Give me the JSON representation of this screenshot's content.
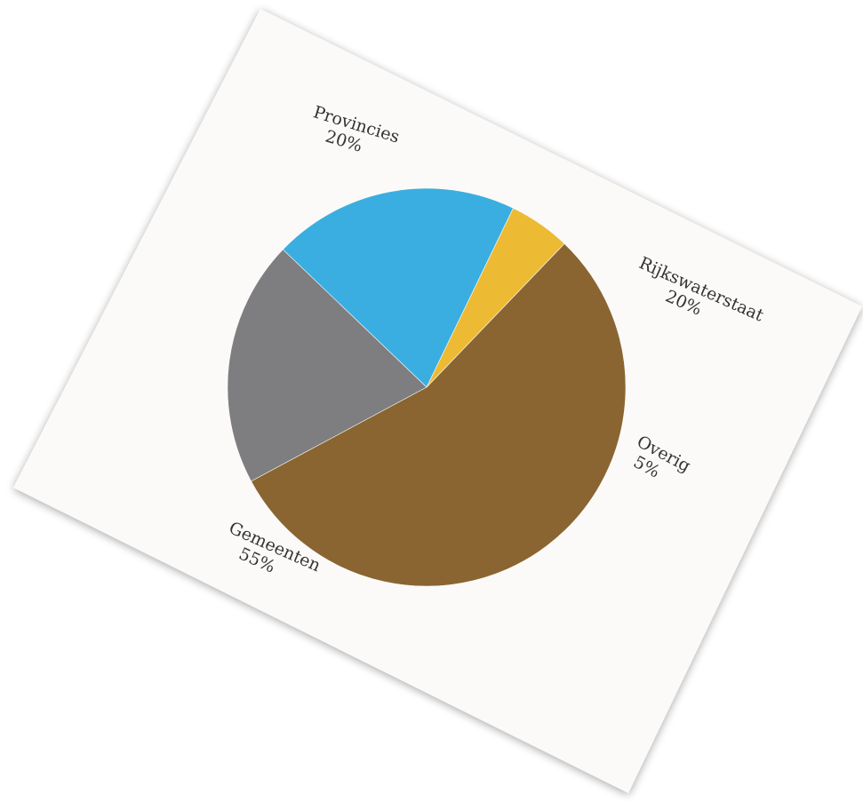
{
  "chart_data": {
    "type": "pie",
    "start_angle_deg": 64.2,
    "direction": "counterclockwise",
    "slices": [
      {
        "name": "Rijkswaterstaat",
        "value": 20,
        "label": "20%",
        "color": "#3AAEE0"
      },
      {
        "name": "Provincies",
        "value": 20,
        "label": "20%",
        "color": "#7E7D80"
      },
      {
        "name": "Gemeenten",
        "value": 55,
        "label": "55%",
        "color": "#8A6531"
      },
      {
        "name": "Overig",
        "value": 5,
        "label": "5%",
        "color": "#EDBA34"
      }
    ]
  },
  "colors": {
    "background": "#ffffff",
    "paper": "#fbfaf8",
    "label_text": "#333333"
  }
}
